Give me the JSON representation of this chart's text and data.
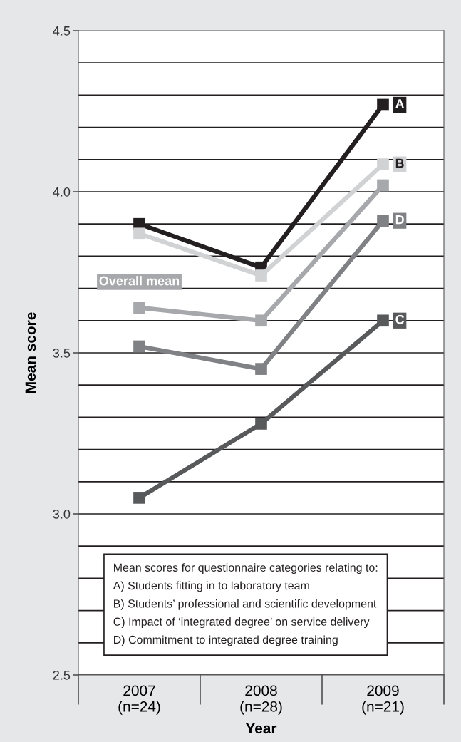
{
  "chart_data": {
    "type": "line",
    "xlabel": "Year",
    "ylabel": "Mean score",
    "categories": [
      "2007\n(n=24)",
      "2008\n(n=28)",
      "2009\n(n=21)"
    ],
    "series": [
      {
        "name": "A",
        "color": "#231f20",
        "values": [
          3.9,
          3.765,
          4.27
        ]
      },
      {
        "name": "B",
        "color": "#d1d2d4",
        "values": [
          3.87,
          3.74,
          4.085
        ]
      },
      {
        "name": "Overall mean",
        "color": "#a7a8ab",
        "values": [
          3.64,
          3.6,
          4.02
        ]
      },
      {
        "name": "D",
        "color": "#808184",
        "values": [
          3.52,
          3.45,
          3.91
        ]
      },
      {
        "name": "C",
        "color": "#58595b",
        "values": [
          3.05,
          3.28,
          3.6
        ]
      }
    ],
    "ylim": [
      2.5,
      4.5
    ],
    "yticks": [
      2.5,
      {
        "value": 2.6,
        "label": null
      },
      {
        "value": 2.7,
        "label": null
      },
      {
        "value": 2.8,
        "label": null
      },
      {
        "value": 2.9,
        "label": null
      },
      {
        "value": 3.0,
        "label": "3.0"
      },
      {
        "value": 3.1,
        "label": null
      },
      {
        "value": 3.2,
        "label": null
      },
      {
        "value": 3.3,
        "label": null
      },
      {
        "value": 3.4,
        "label": null
      },
      3.5,
      {
        "value": 3.6,
        "label": null
      },
      {
        "value": 3.7,
        "label": null
      },
      {
        "value": 3.8,
        "label": null
      },
      {
        "value": 3.9,
        "label": null
      },
      {
        "value": 4.0,
        "label": "4.0"
      },
      {
        "value": 4.1,
        "label": null
      },
      {
        "value": 4.2,
        "label": null
      },
      {
        "value": 4.3,
        "label": null
      },
      {
        "value": 4.4,
        "label": null
      },
      4.5
    ],
    "grid": "y",
    "marker": "square",
    "line_style": "solid",
    "annotations": [
      "Mean scores for questionnaire categories relating to:",
      "A) Students fitting in to laboratory team",
      "B) Students’ professional and scientific development",
      "C) Impact of ‘integrated degree’ on service delivery",
      "D) Commitment to integrated degree training"
    ]
  }
}
